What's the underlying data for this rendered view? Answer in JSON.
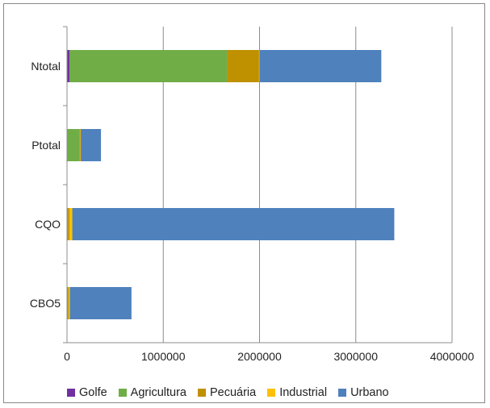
{
  "chart_data": {
    "type": "bar",
    "orientation": "horizontal",
    "stacked": true,
    "categories": [
      "CBO5",
      "CQO",
      "Ptotal",
      "Ntotal"
    ],
    "series": [
      {
        "name": "Golfe",
        "color": "#7030a0",
        "values": [
          2000,
          0,
          1000,
          25000
        ]
      },
      {
        "name": "Agricultura",
        "color": "#70ad47",
        "values": [
          8000,
          10000,
          130000,
          1640000
        ]
      },
      {
        "name": "Pecuária",
        "color": "#bf9000",
        "values": [
          10000,
          15000,
          8000,
          330000
        ]
      },
      {
        "name": "Industrial",
        "color": "#ffc000",
        "values": [
          10000,
          30000,
          4000,
          5000
        ]
      },
      {
        "name": "Urbano",
        "color": "#4f81bd",
        "values": [
          640000,
          3345000,
          210000,
          1265000
        ]
      }
    ],
    "xlim": [
      0,
      4000000
    ],
    "xticks": [
      "0",
      "1000000",
      "2000000",
      "3000000",
      "4000000"
    ],
    "grid": true,
    "legend_position": "bottom"
  }
}
